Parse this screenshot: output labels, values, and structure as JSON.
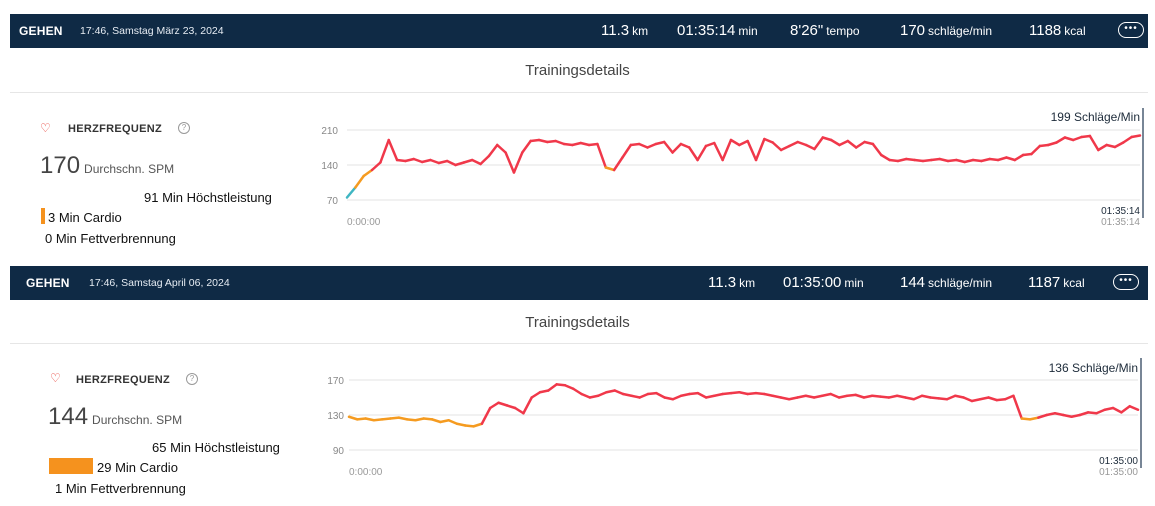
{
  "sessions": [
    {
      "activity": "GEHEN",
      "datetime": "17:46, Samstag März 23, 2024",
      "stats": [
        {
          "value": "11.3",
          "unit": "km"
        },
        {
          "value": "01:35:14",
          "unit": "min"
        },
        {
          "value": "8'26\"",
          "unit": "tempo"
        },
        {
          "value": "170",
          "unit": "schläge/min"
        },
        {
          "value": "1188",
          "unit": "kcal"
        }
      ],
      "more_icon": "ellipsis-icon",
      "details_title": "Trainingsdetails",
      "hr_title": "HERZFREQUENZ",
      "avg_value": "170",
      "avg_unit": "Durchschn. SPM",
      "zones": {
        "peak": "91 Min Höchstleistung",
        "cardio": "3 Min Cardio",
        "fatburn": "0 Min Fettverbrennung"
      },
      "chart_data": {
        "type": "line",
        "y_ticks": [
          "210",
          "140",
          "70"
        ],
        "ylim": [
          70,
          210
        ],
        "x_start_label": "0:00:00",
        "x_end_label": "01:35:14",
        "cursor_time": "01:35:14",
        "cursor_value": "199 Schläge/Min",
        "grid": true,
        "series": [
          {
            "x": [
              0,
              1,
              2,
              3,
              4,
              5,
              6,
              7,
              8,
              9,
              10,
              11,
              12,
              13,
              14,
              15,
              16,
              17,
              18,
              19,
              20,
              21,
              22,
              23,
              24,
              25,
              26,
              27,
              28,
              29,
              30,
              31,
              32,
              33,
              34,
              35,
              36,
              37,
              38,
              39,
              40,
              41,
              42,
              43,
              44,
              45,
              46,
              47,
              48,
              49,
              50,
              51,
              52,
              53,
              54,
              55,
              56,
              57,
              58,
              59,
              60,
              61,
              62,
              63,
              64,
              65,
              66,
              67,
              68,
              69,
              70,
              71,
              72,
              73,
              74,
              75,
              76,
              77,
              78,
              79,
              80,
              81,
              82,
              83,
              84,
              85,
              86,
              87,
              88,
              89,
              90,
              91,
              92,
              93,
              94,
              95
            ],
            "y": [
              75,
              95,
              118,
              130,
              145,
              190,
              150,
              148,
              152,
              146,
              150,
              144,
              148,
              140,
              145,
              150,
              142,
              158,
              180,
              165,
              125,
              165,
              188,
              190,
              186,
              188,
              182,
              180,
              184,
              180,
              182,
              135,
              130,
              155,
              180,
              182,
              175,
              182,
              186,
              165,
              182,
              175,
              150,
              178,
              184,
              150,
              190,
              180,
              188,
              150,
              192,
              185,
              170,
              178,
              186,
              180,
              172,
              195,
              190,
              180,
              188,
              175,
              186,
              182,
              160,
              150,
              148,
              152,
              150,
              148,
              150,
              152,
              148,
              150,
              146,
              150,
              148,
              152,
              150,
              155,
              150,
              160,
              162,
              178,
              180,
              185,
              195,
              190,
              196,
              198,
              170,
              180,
              176,
              185,
              196,
              199
            ]
          }
        ]
      }
    },
    {
      "activity": "GEHEN",
      "datetime": "17:46, Samstag April 06, 2024",
      "stats": [
        {
          "value": "11.3",
          "unit": "km"
        },
        {
          "value": "01:35:00",
          "unit": "min"
        },
        {
          "value": "144",
          "unit": "schläge/min"
        },
        {
          "value": "1187",
          "unit": "kcal"
        }
      ],
      "more_icon": "ellipsis-icon",
      "details_title": "Trainingsdetails",
      "hr_title": "HERZFREQUENZ",
      "avg_value": "144",
      "avg_unit": "Durchschn. SPM",
      "zones": {
        "peak": "65 Min Höchstleistung",
        "cardio": "29 Min Cardio",
        "fatburn": "1 Min Fettverbrennung"
      },
      "chart_data": {
        "type": "line",
        "y_ticks": [
          "170",
          "130",
          "90"
        ],
        "ylim": [
          90,
          170
        ],
        "x_start_label": "0:00:00",
        "x_end_label": "01:35:00",
        "cursor_time": "01:35:00",
        "cursor_value": "136 Schläge/Min",
        "grid": true,
        "series": [
          {
            "x": [
              0,
              1,
              2,
              3,
              4,
              5,
              6,
              7,
              8,
              9,
              10,
              11,
              12,
              13,
              14,
              15,
              16,
              17,
              18,
              19,
              20,
              21,
              22,
              23,
              24,
              25,
              26,
              27,
              28,
              29,
              30,
              31,
              32,
              33,
              34,
              35,
              36,
              37,
              38,
              39,
              40,
              41,
              42,
              43,
              44,
              45,
              46,
              47,
              48,
              49,
              50,
              51,
              52,
              53,
              54,
              55,
              56,
              57,
              58,
              59,
              60,
              61,
              62,
              63,
              64,
              65,
              66,
              67,
              68,
              69,
              70,
              71,
              72,
              73,
              74,
              75,
              76,
              77,
              78,
              79,
              80,
              81,
              82,
              83,
              84,
              85,
              86,
              87,
              88,
              89,
              90,
              91,
              92,
              93,
              94,
              95
            ],
            "y": [
              128,
              125,
              126,
              124,
              125,
              126,
              127,
              125,
              124,
              126,
              125,
              122,
              124,
              120,
              118,
              117,
              120,
              138,
              144,
              141,
              138,
              132,
              150,
              156,
              158,
              165,
              164,
              160,
              154,
              150,
              152,
              156,
              158,
              154,
              152,
              150,
              154,
              155,
              150,
              148,
              152,
              154,
              155,
              150,
              152,
              154,
              155,
              156,
              154,
              155,
              154,
              152,
              150,
              148,
              150,
              152,
              150,
              152,
              154,
              150,
              152,
              153,
              150,
              152,
              151,
              150,
              152,
              150,
              148,
              152,
              150,
              149,
              148,
              152,
              150,
              146,
              148,
              150,
              147,
              148,
              152,
              126,
              125,
              127,
              130,
              132,
              130,
              128,
              130,
              133,
              132,
              136,
              138,
              133,
              140,
              136
            ]
          }
        ]
      }
    }
  ]
}
